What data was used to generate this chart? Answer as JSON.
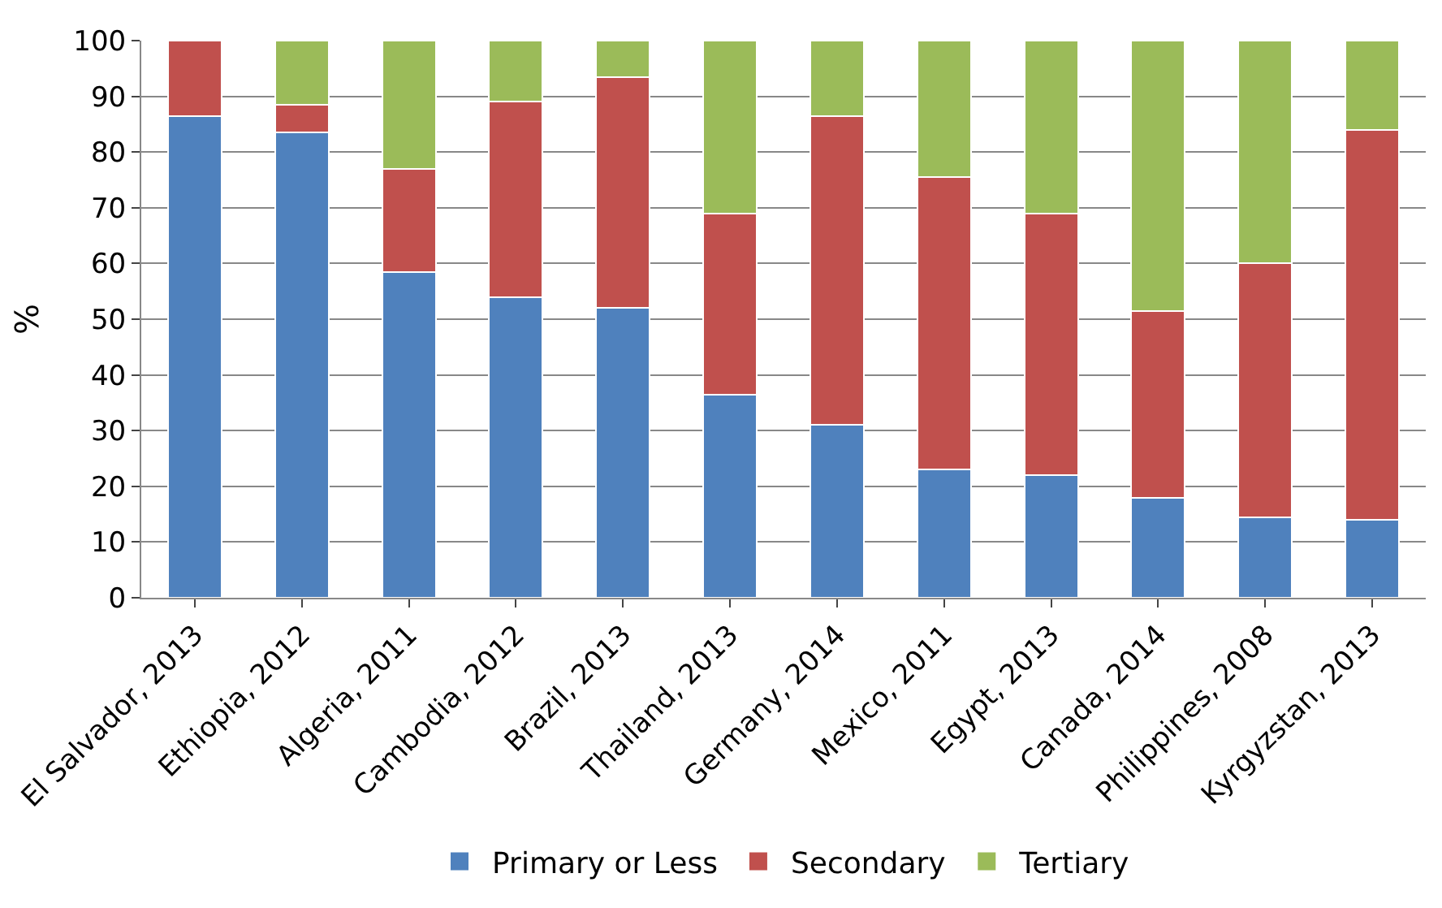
{
  "chart_data": {
    "type": "bar",
    "stacked": true,
    "ylabel": "%",
    "categories": [
      "El Salvador, 2013",
      "Ethiopia, 2012",
      "Algeria, 2011",
      "Cambodia, 2012",
      "Brazil, 2013",
      "Thailand, 2013",
      "Germany, 2014",
      "Mexico, 2011",
      "Egypt, 2013",
      "Canada, 2014",
      "Philippines, 2008",
      "Kyrgyzstan, 2013"
    ],
    "series": [
      {
        "name": "Primary or Less",
        "color": "#4f81bd",
        "values": [
          86.5,
          83.5,
          58.5,
          54,
          52,
          36.5,
          31,
          23,
          22,
          18,
          14.5,
          14
        ]
      },
      {
        "name": "Secondary",
        "color": "#c0504d",
        "values": [
          13.5,
          5,
          18.5,
          35,
          41.5,
          32.5,
          55.5,
          52.5,
          47,
          33.5,
          45.5,
          70
        ]
      },
      {
        "name": "Tertiary",
        "color": "#9bbb59",
        "values": [
          null,
          11.5,
          23,
          11,
          6.5,
          31,
          13.5,
          24.5,
          31,
          48.5,
          40,
          16
        ]
      }
    ],
    "ylim": [
      0,
      100
    ],
    "yticks": [
      0,
      10,
      20,
      30,
      40,
      50,
      60,
      70,
      80,
      90,
      100
    ],
    "grid": "y",
    "legend": "bottom"
  }
}
